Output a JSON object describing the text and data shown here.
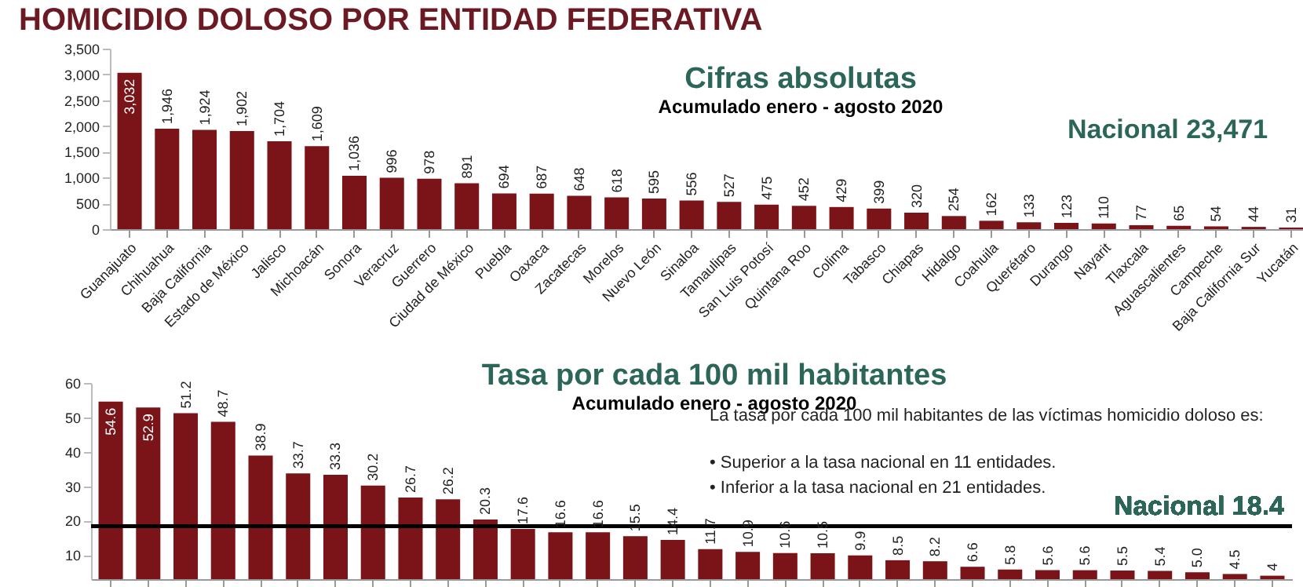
{
  "chart_data": [
    {
      "type": "bar",
      "title": "Cifras absolutas",
      "subtitle": "Acumulado enero - agosto 2020",
      "annotations": [
        "HOMICIDIO DOLOSO POR ENTIDAD FEDERATIVA",
        "Nacional 23,471"
      ],
      "categories": [
        "Guanajuato",
        "Chihuahua",
        "Baja California",
        "Estado de México",
        "Jalisco",
        "Michoacán",
        "Sonora",
        "Veracruz",
        "Guerrero",
        "Ciudad de México",
        "Puebla",
        "Oaxaca",
        "Zacatecas",
        "Morelos",
        "Nuevo León",
        "Sinaloa",
        "Tamaulipas",
        "San Luis Potosí",
        "Quintana Roo",
        "Colima",
        "Tabasco",
        "Chiapas",
        "Hidalgo",
        "Coahuila",
        "Querétaro",
        "Durango",
        "Nayarit",
        "Tlaxcala",
        "Aguascalientes",
        "Campeche",
        "Baja California Sur",
        "Yucatán"
      ],
      "values": [
        3032,
        1946,
        1924,
        1902,
        1704,
        1609,
        1036,
        996,
        978,
        891,
        694,
        687,
        648,
        618,
        595,
        556,
        527,
        475,
        452,
        429,
        399,
        320,
        254,
        162,
        133,
        123,
        110,
        77,
        65,
        54,
        44,
        31
      ],
      "value_labels": [
        "3,032",
        "1,946",
        "1,924",
        "1,902",
        "1,704",
        "1,609",
        "1,036",
        "996",
        "978",
        "891",
        "694",
        "687",
        "648",
        "618",
        "595",
        "556",
        "527",
        "475",
        "452",
        "429",
        "399",
        "320",
        "254",
        "162",
        "133",
        "123",
        "110",
        "77",
        "65",
        "54",
        "44",
        "31"
      ],
      "color": "#7a1418",
      "ylim": [
        0,
        3500
      ],
      "yticks": [
        0,
        500,
        {
          "value": 1000,
          "label": "1,000"
        },
        {
          "value": 1500,
          "label": "1,500"
        },
        {
          "value": 2000,
          "label": "2,000"
        },
        {
          "value": 2500,
          "label": "2,500"
        },
        {
          "value": 3000,
          "label": "3,000"
        },
        {
          "value": 3500,
          "label": "3,500"
        }
      ],
      "grid": false
    },
    {
      "type": "bar",
      "title": "Tasa por cada 100 mil habitantes",
      "subtitle": "Acumulado enero - agosto 2020",
      "annotations": [
        "La tasa por cada 100 mil habitantes de las víctimas homicidio doloso es:",
        "• Superior a la tasa nacional en 11 entidades.",
        "• Inferior a la tasa nacional en 21 entidades."
      ],
      "categories": [
        null,
        null,
        null,
        null,
        null,
        null,
        null,
        null,
        null,
        null,
        null,
        null,
        null,
        null,
        null,
        null,
        null,
        null,
        null,
        null,
        null,
        null,
        null,
        null,
        null,
        null,
        null,
        null,
        null,
        null,
        null,
        null
      ],
      "values": [
        54.6,
        52.9,
        51.2,
        48.7,
        38.9,
        33.7,
        33.3,
        30.2,
        26.7,
        26.2,
        20.3,
        17.6,
        16.6,
        16.6,
        15.5,
        14.4,
        11.7,
        10.9,
        10.6,
        10.5,
        9.9,
        8.5,
        8.2,
        6.6,
        5.8,
        5.6,
        5.6,
        5.5,
        5.4,
        5.0,
        4.5,
        4
      ],
      "value_labels": [
        "54.6",
        "52.9",
        "51.2",
        "48.7",
        "38.9",
        "33.7",
        "33.3",
        "30.2",
        "26.7",
        "26.2",
        "20.3",
        "17.6",
        "16.6",
        "16.6",
        "15.5",
        "14.4",
        "11.7",
        "10.9",
        "10.6",
        "10.5",
        "9.9",
        "8.5",
        "8.2",
        "6.6",
        "5.8",
        "5.6",
        "5.6",
        "5.5",
        "5.4",
        "5.0",
        "4.5",
        "4"
      ],
      "color": "#7a1418",
      "ylim": [
        3,
        60
      ],
      "yticks": [
        10,
        20,
        30,
        40,
        50,
        60
      ],
      "tick_labels": "y",
      "grid": false,
      "ref_lines": [
        {
          "axis": "y",
          "value": 18.4,
          "label": "Nacional 18.4",
          "color": "#000000"
        }
      ]
    }
  ]
}
